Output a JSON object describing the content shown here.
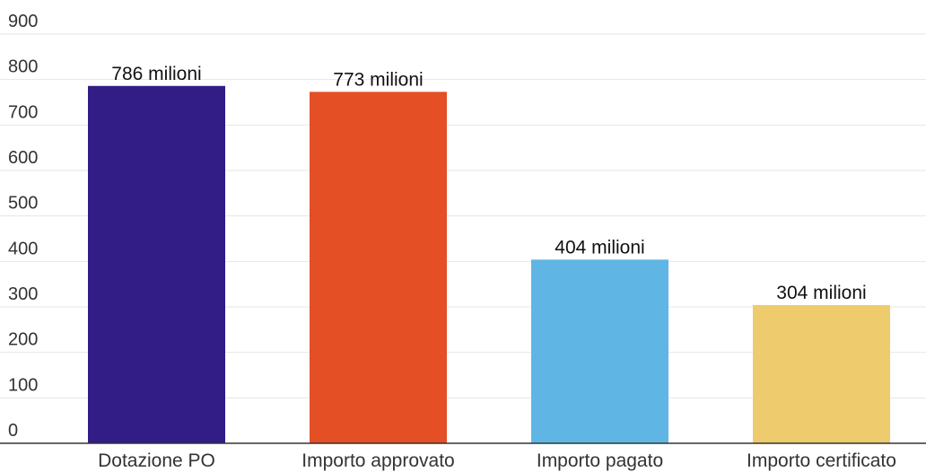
{
  "chart_data": {
    "type": "bar",
    "categories": [
      "Dotazione PO",
      "Importo approvato",
      "Importo pagato",
      "Importo certificato"
    ],
    "values": [
      786,
      773,
      404,
      304
    ],
    "data_labels": [
      "786 milioni",
      "773 milioni",
      "404 milioni",
      "304 milioni"
    ],
    "colors": [
      "#321d86",
      "#e44f26",
      "#5fb6e5",
      "#eecb6c"
    ],
    "title": "",
    "xlabel": "",
    "ylabel": "",
    "ylim": [
      0,
      900
    ],
    "y_ticks": [
      0,
      100,
      200,
      300,
      400,
      500,
      600,
      700,
      800,
      900
    ],
    "y_tick_labels": [
      "0",
      "100",
      "200",
      "300",
      "400",
      "500",
      "600",
      "700",
      "800",
      "900"
    ],
    "grid": true,
    "legend": "none"
  }
}
